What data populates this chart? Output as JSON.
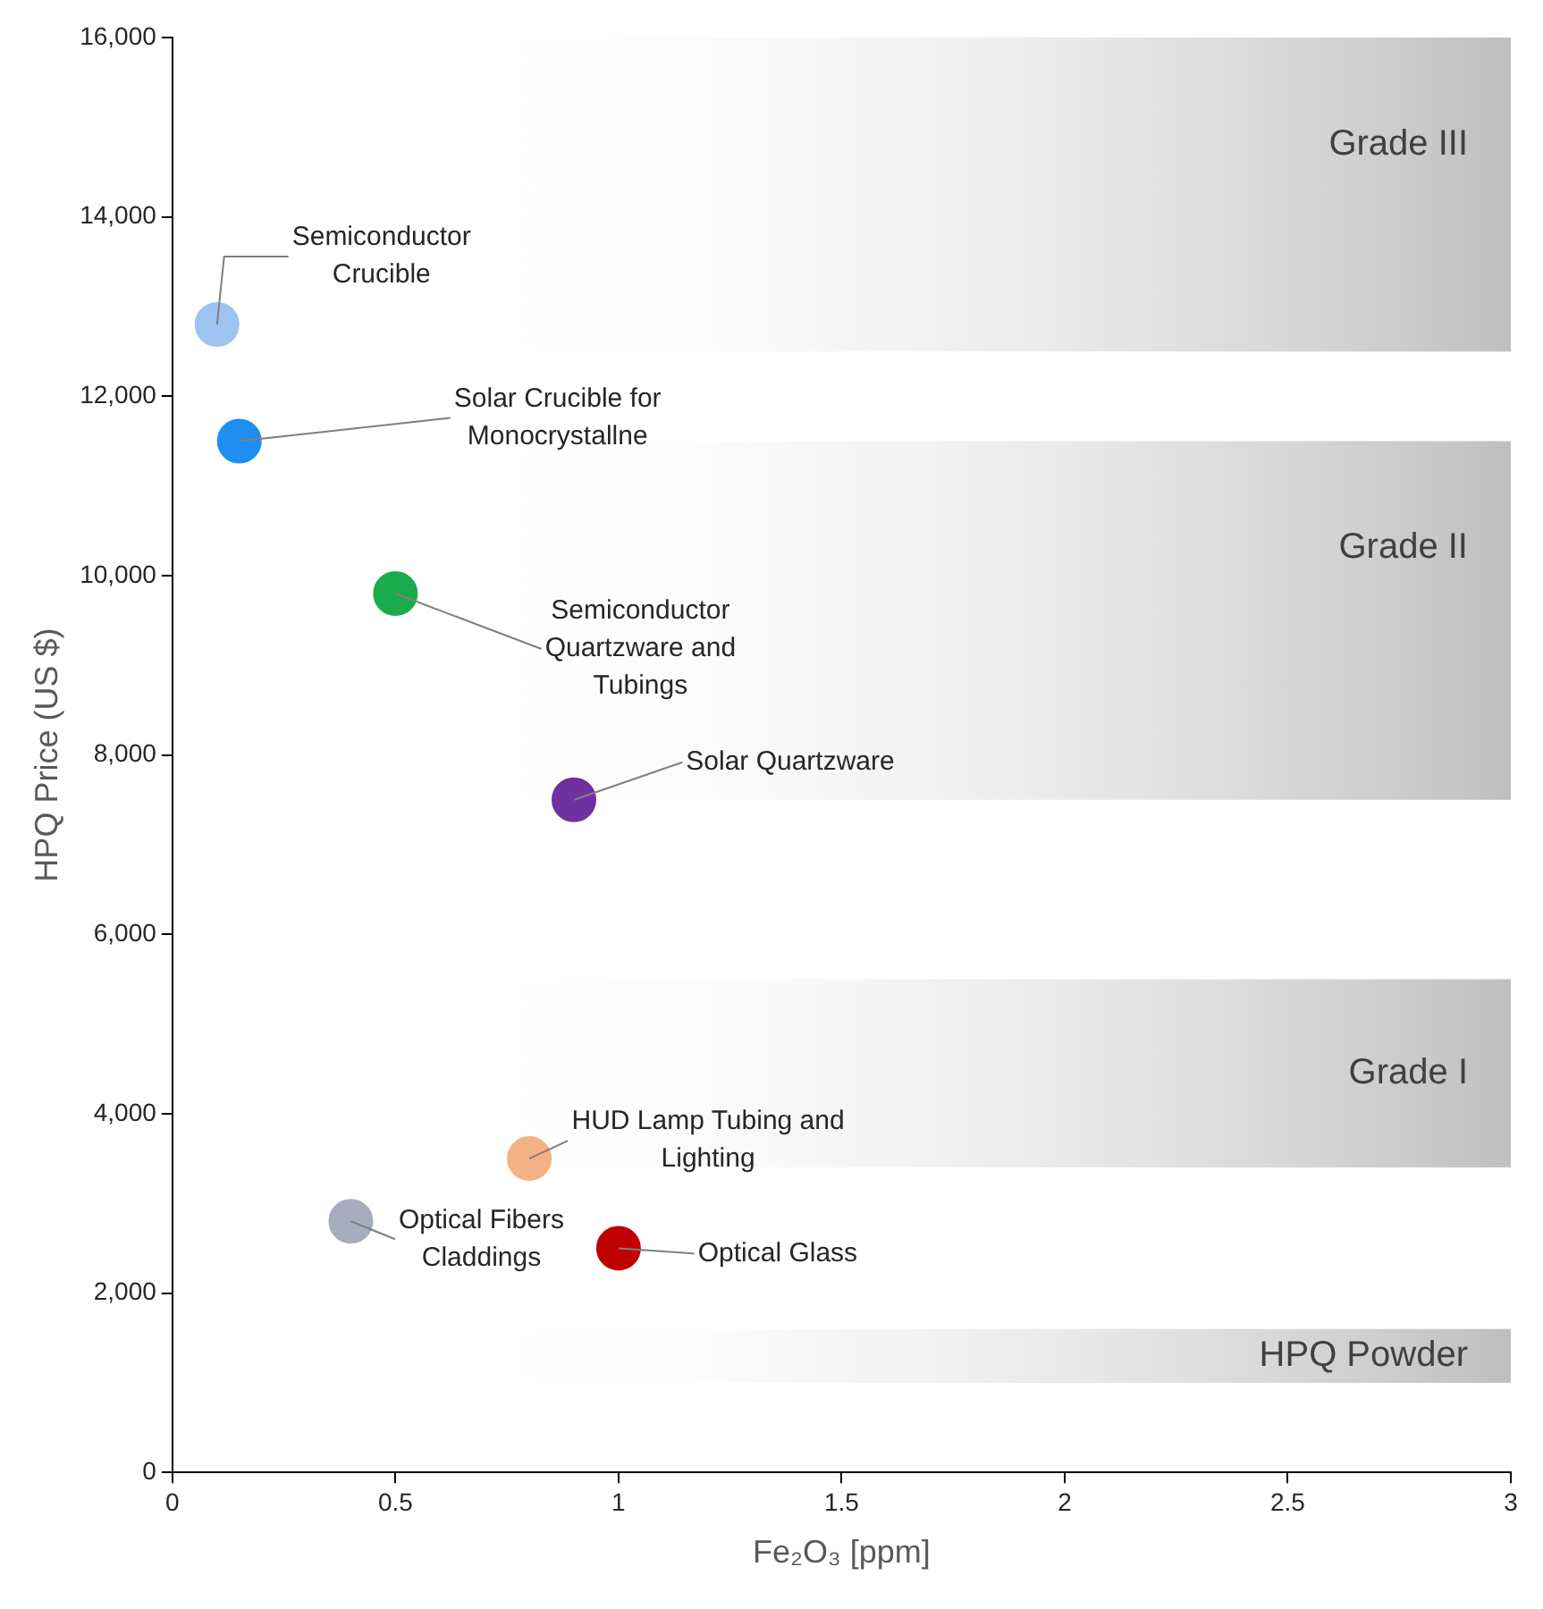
{
  "chart_data": {
    "type": "scatter",
    "xlabel": "Fe₂O₃ [ppm]",
    "ylabel": "HPQ Price (US $)",
    "xlim": [
      0,
      3
    ],
    "xticks": [
      0,
      0.5,
      1,
      1.5,
      2,
      2.5,
      3
    ],
    "ylim": [
      0,
      16000
    ],
    "yticks": [
      0,
      {
        "value": 2000,
        "label": "2,000"
      },
      {
        "value": 4000,
        "label": "4,000"
      },
      {
        "value": 6000,
        "label": "6,000"
      },
      {
        "value": 8000,
        "label": "8,000"
      },
      {
        "value": 10000,
        "label": "10,000"
      },
      {
        "value": 12000,
        "label": "12,000"
      },
      {
        "value": 14000,
        "label": "14,000"
      },
      {
        "value": 16000,
        "label": "16,000"
      }
    ],
    "x": [
      0.1,
      0.15,
      0.5,
      0.9,
      0.8,
      0.4,
      1.0
    ],
    "values": [
      12800,
      11500,
      9800,
      7500,
      3500,
      2800,
      2500
    ],
    "colors": [
      "#9dc3f0",
      "#1e8ff0",
      "#1aab4c",
      "#7030a0",
      "#f4b183",
      "#a6adbf",
      "#c00000"
    ],
    "marker": "circle",
    "grid": false,
    "legend": false,
    "bands": [
      {
        "axis": "y",
        "from": 12500,
        "to": 16000,
        "label": "Grade III",
        "color": "#bfbfbf"
      },
      {
        "axis": "y",
        "from": 7500,
        "to": 11500,
        "label": "Grade II",
        "color": "#bfbfbf"
      },
      {
        "axis": "y",
        "from": 3400,
        "to": 5500,
        "label": "Grade I",
        "color": "#bfbfbf"
      },
      {
        "axis": "y",
        "from": 1000,
        "to": 1600,
        "label": "HPQ Powder",
        "color": "#bfbfbf"
      }
    ],
    "annotations": [
      {
        "text": "Semiconductor Crucible",
        "x": 0.1,
        "y": 12800
      },
      {
        "text": "Solar Crucible for Monocrystallne",
        "x": 0.15,
        "y": 11500
      },
      {
        "text": "Semiconductor Quartzware and Tubings",
        "x": 0.5,
        "y": 9800
      },
      {
        "text": "Solar Quartzware",
        "x": 0.9,
        "y": 7500
      },
      {
        "text": "HUD Lamp Tubing and Lighting",
        "x": 0.8,
        "y": 3500
      },
      {
        "text": "Optical Fibers Claddings",
        "x": 0.4,
        "y": 2800
      },
      {
        "text": "Optical Glass",
        "x": 1.0,
        "y": 2500
      }
    ]
  }
}
